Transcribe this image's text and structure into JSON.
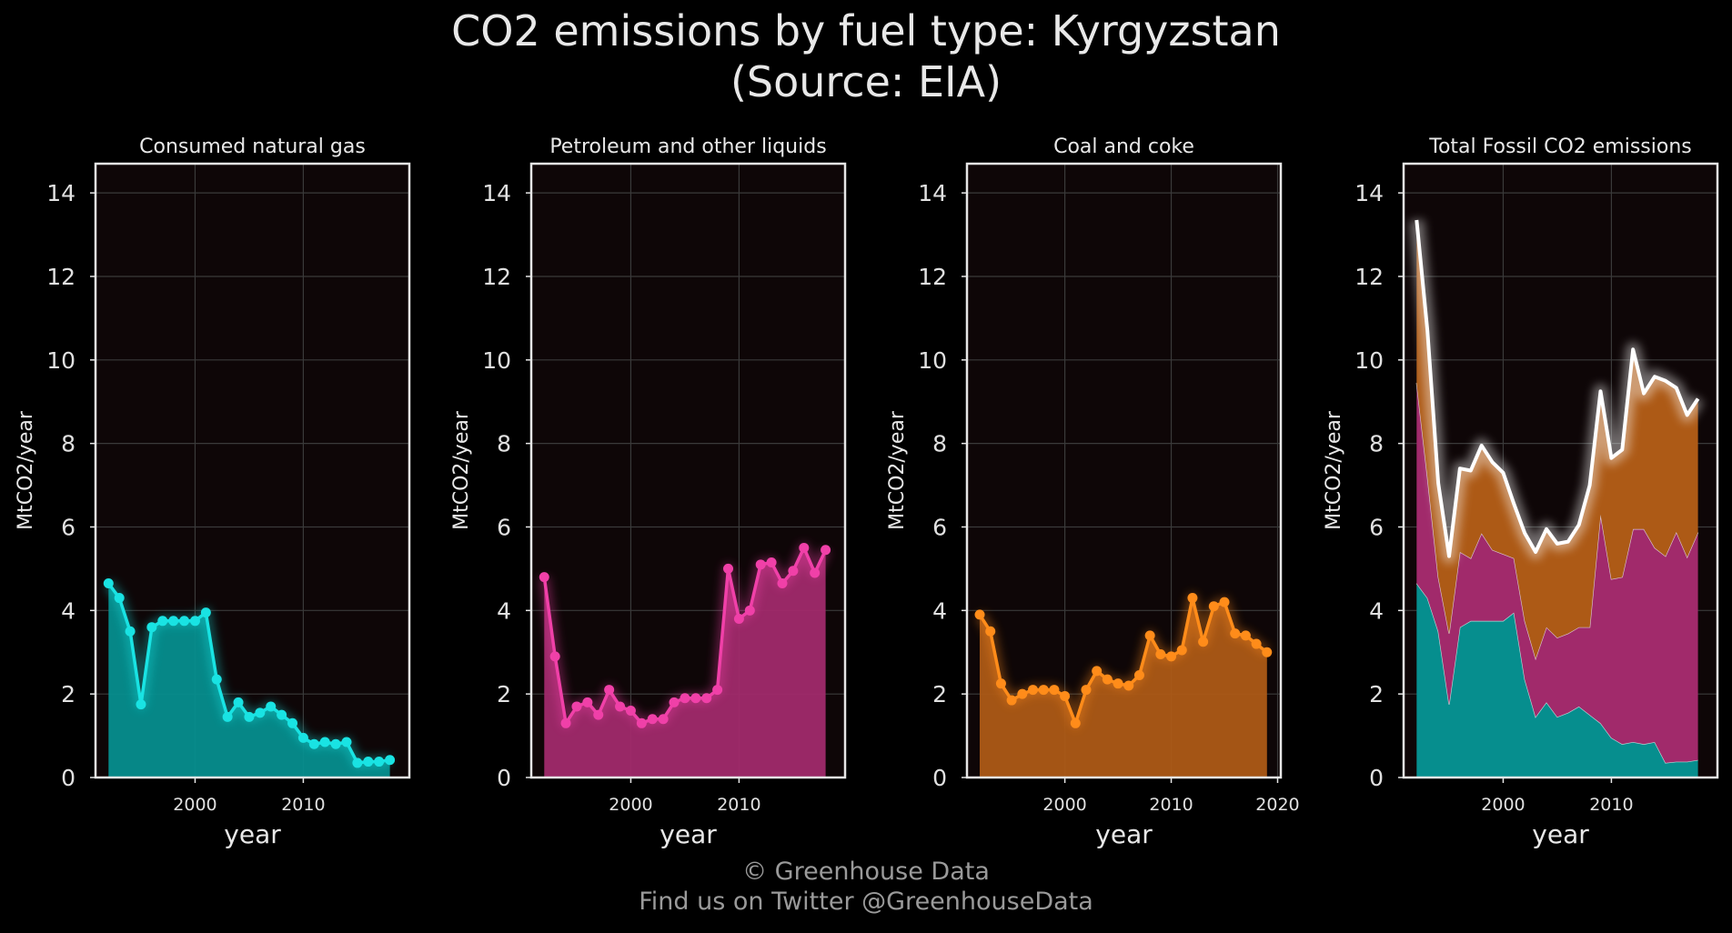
{
  "header": {
    "title_line1": "CO2 emissions by fuel type: Kyrgyzstan",
    "title_line2": "(Source: EIA)"
  },
  "footer": {
    "copyright": "© Greenhouse Data",
    "twitter": "Find us on Twitter @GreenhouseData"
  },
  "colors": {
    "background": "#000000",
    "panel": "#0e0607",
    "gas": "#19e3e3",
    "gas_fill": "#068e8e",
    "petroleum": "#f040a8",
    "petroleum_fill": "#a12a6b",
    "coal": "#ff8c1a",
    "coal_fill": "#ad5a16",
    "total": "#ffffff"
  },
  "chart_data": [
    {
      "type": "area",
      "title": "Consumed natural gas",
      "xlabel": "year",
      "ylabel": "MtCO2/year",
      "xlim": [
        1990.8,
        2019.8
      ],
      "ylim": [
        0,
        14.7
      ],
      "xticks": [
        2000,
        2010
      ],
      "yticks": [
        0,
        2,
        4,
        6,
        8,
        10,
        12,
        14
      ],
      "grid": true,
      "x": [
        1992,
        1993,
        1994,
        1995,
        1996,
        1997,
        1998,
        1999,
        2000,
        2001,
        2002,
        2003,
        2004,
        2005,
        2006,
        2007,
        2008,
        2009,
        2010,
        2011,
        2012,
        2013,
        2014,
        2015,
        2016,
        2017,
        2018
      ],
      "series": [
        {
          "color_key": "gas",
          "values": [
            4.65,
            4.3,
            3.5,
            1.75,
            3.6,
            3.75,
            3.75,
            3.75,
            3.75,
            3.95,
            2.35,
            1.45,
            1.8,
            1.45,
            1.55,
            1.7,
            1.5,
            1.3,
            0.95,
            0.8,
            0.85,
            0.8,
            0.85,
            0.35,
            0.38,
            0.38,
            0.42
          ]
        }
      ]
    },
    {
      "type": "area",
      "title": "Petroleum and other liquids",
      "xlabel": "year",
      "ylabel": "MtCO2/year",
      "xlim": [
        1990.8,
        2019.8
      ],
      "ylim": [
        0,
        14.7
      ],
      "xticks": [
        2000,
        2010
      ],
      "yticks": [
        0,
        2,
        4,
        6,
        8,
        10,
        12,
        14
      ],
      "grid": true,
      "x": [
        1992,
        1993,
        1994,
        1995,
        1996,
        1997,
        1998,
        1999,
        2000,
        2001,
        2002,
        2003,
        2004,
        2005,
        2006,
        2007,
        2008,
        2009,
        2010,
        2011,
        2012,
        2013,
        2014,
        2015,
        2016,
        2017,
        2018
      ],
      "series": [
        {
          "color_key": "petroleum",
          "values": [
            4.8,
            2.9,
            1.3,
            1.7,
            1.8,
            1.5,
            2.1,
            1.7,
            1.6,
            1.3,
            1.4,
            1.4,
            1.8,
            1.9,
            1.9,
            1.9,
            2.1,
            5.0,
            3.8,
            4.0,
            5.1,
            5.15,
            4.65,
            4.95,
            5.5,
            4.9,
            5.45
          ]
        }
      ]
    },
    {
      "type": "area",
      "title": "Coal and coke",
      "xlabel": "year",
      "ylabel": "MtCO2/year",
      "xlim": [
        1990.8,
        2020.3
      ],
      "ylim": [
        0,
        14.7
      ],
      "xticks": [
        2000,
        2010,
        2020
      ],
      "yticks": [
        0,
        2,
        4,
        6,
        8,
        10,
        12,
        14
      ],
      "grid": true,
      "x": [
        1992,
        1993,
        1994,
        1995,
        1996,
        1997,
        1998,
        1999,
        2000,
        2001,
        2002,
        2003,
        2004,
        2005,
        2006,
        2007,
        2008,
        2009,
        2010,
        2011,
        2012,
        2013,
        2014,
        2015,
        2016,
        2017,
        2018,
        2019
      ],
      "series": [
        {
          "color_key": "coal",
          "values": [
            3.9,
            3.5,
            2.25,
            1.85,
            2.0,
            2.1,
            2.1,
            2.1,
            1.95,
            1.3,
            2.1,
            2.55,
            2.35,
            2.25,
            2.2,
            2.45,
            3.4,
            2.95,
            2.9,
            3.05,
            4.3,
            3.25,
            4.1,
            4.2,
            3.45,
            3.4,
            3.2,
            3.0
          ]
        }
      ]
    },
    {
      "type": "area",
      "title": "Total Fossil CO2 emissions",
      "xlabel": "year",
      "ylabel": "MtCO2/year",
      "xlim": [
        1990.8,
        2019.8
      ],
      "ylim": [
        0,
        14.7
      ],
      "xticks": [
        2000,
        2010
      ],
      "yticks": [
        0,
        2,
        4,
        6,
        8,
        10,
        12,
        14
      ],
      "grid": true,
      "stacked": true,
      "x": [
        1992,
        1993,
        1994,
        1995,
        1996,
        1997,
        1998,
        1999,
        2000,
        2001,
        2002,
        2003,
        2004,
        2005,
        2006,
        2007,
        2008,
        2009,
        2010,
        2011,
        2012,
        2013,
        2014,
        2015,
        2016,
        2017,
        2018
      ],
      "series": [
        {
          "color_key": "gas_fill",
          "role": "gas",
          "values": [
            4.65,
            4.3,
            3.5,
            1.75,
            3.6,
            3.75,
            3.75,
            3.75,
            3.75,
            3.95,
            2.35,
            1.45,
            1.8,
            1.45,
            1.55,
            1.7,
            1.5,
            1.3,
            0.95,
            0.8,
            0.85,
            0.8,
            0.85,
            0.35,
            0.38,
            0.38,
            0.42
          ]
        },
        {
          "color_key": "petroleum_fill",
          "role": "petroleum",
          "values": [
            4.8,
            2.9,
            1.3,
            1.7,
            1.8,
            1.5,
            2.1,
            1.7,
            1.6,
            1.3,
            1.4,
            1.4,
            1.8,
            1.9,
            1.9,
            1.9,
            2.1,
            5.0,
            3.8,
            4.0,
            5.1,
            5.15,
            4.65,
            4.95,
            5.5,
            4.9,
            5.45
          ]
        },
        {
          "color_key": "coal_fill",
          "role": "coal",
          "values": [
            3.9,
            3.5,
            2.25,
            1.85,
            2.0,
            2.1,
            2.1,
            2.1,
            1.95,
            1.3,
            2.1,
            2.55,
            2.35,
            2.25,
            2.2,
            2.45,
            3.4,
            2.95,
            2.9,
            3.05,
            4.3,
            3.25,
            4.1,
            4.2,
            3.45,
            3.4,
            3.2
          ]
        }
      ],
      "total": [
        13.35,
        10.7,
        7.05,
        5.3,
        7.4,
        7.35,
        7.95,
        7.55,
        7.3,
        6.55,
        5.85,
        5.4,
        5.95,
        5.6,
        5.65,
        6.05,
        7.0,
        9.25,
        7.65,
        7.85,
        10.25,
        9.2,
        9.6,
        9.5,
        9.33,
        8.68,
        9.07
      ]
    }
  ]
}
